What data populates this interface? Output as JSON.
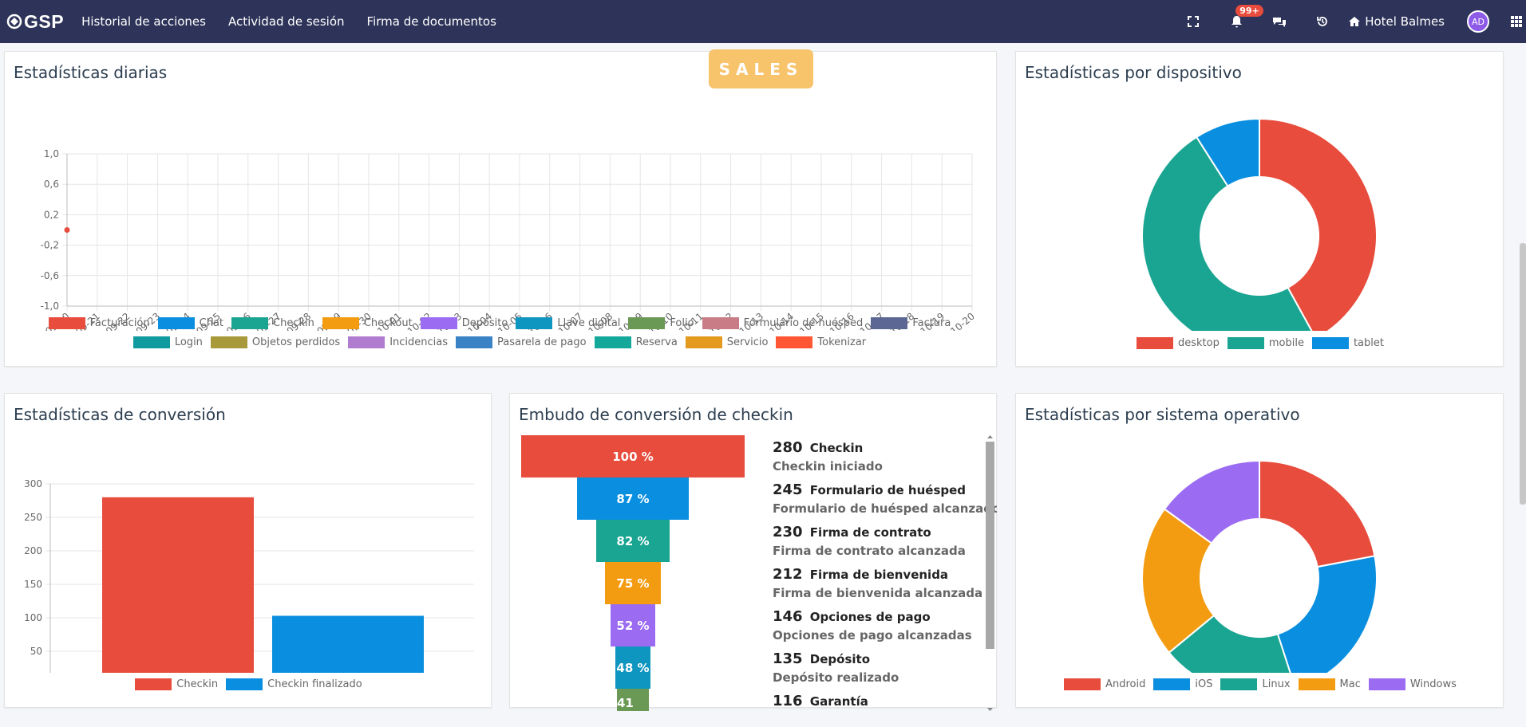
{
  "navbar": {
    "brand": "GSP",
    "links": [
      "Historial de acciones",
      "Actividad de sesión",
      "Firma de documentos"
    ],
    "notification_badge": "99+",
    "hotel": "Hotel Balmes",
    "avatar_initials": "AD"
  },
  "sales_button": "SALES",
  "daily": {
    "title": "Estadísticas diarias",
    "legend": [
      {
        "label": "Facturación",
        "color": "#e74c3c"
      },
      {
        "label": "Chat",
        "color": "#0a8fe0"
      },
      {
        "label": "Checkin",
        "color": "#1aa592"
      },
      {
        "label": "Checkout",
        "color": "#f39c12"
      },
      {
        "label": "Depósito",
        "color": "#9b6cf2"
      },
      {
        "label": "Llave digital",
        "color": "#0f96c0"
      },
      {
        "label": "Folio",
        "color": "#6a9955"
      },
      {
        "label": "Formulario de huésped",
        "color": "#c97c86"
      },
      {
        "label": "Factura",
        "color": "#5c6793"
      },
      {
        "label": "Login",
        "color": "#0f9aa0"
      },
      {
        "label": "Objetos perdidos",
        "color": "#a89a3a"
      },
      {
        "label": "Incidencias",
        "color": "#b07cd0"
      },
      {
        "label": "Pasarela de pago",
        "color": "#3a82c6"
      },
      {
        "label": "Reserva",
        "color": "#13a89a"
      },
      {
        "label": "Servicio",
        "color": "#e39a1e"
      },
      {
        "label": "Tokenizar",
        "color": "#ff5733"
      }
    ]
  },
  "device": {
    "title": "Estadísticas por dispositivo",
    "legend": [
      {
        "label": "desktop",
        "color": "#e74c3c"
      },
      {
        "label": "mobile",
        "color": "#1aa592"
      },
      {
        "label": "tablet",
        "color": "#0a8fe0"
      }
    ]
  },
  "conversion": {
    "title": "Estadísticas de conversión",
    "legend": [
      {
        "label": "Checkin",
        "color": "#e74c3c"
      },
      {
        "label": "Checkin finalizado",
        "color": "#0a8fe0"
      }
    ]
  },
  "funnel": {
    "title": "Embudo de conversión de checkin",
    "steps": [
      {
        "percent": "100 %",
        "count": "280",
        "name": "Checkin",
        "sub": "Checkin iniciado",
        "color": "#e74c3c",
        "fraction": 1.0
      },
      {
        "percent": "87 %",
        "count": "245",
        "name": "Formulario de huésped",
        "sub": "Formulario de huésped alcanzado",
        "color": "#0a8fe0",
        "fraction": 0.87
      },
      {
        "percent": "82 %",
        "count": "230",
        "name": "Firma de contrato",
        "sub": "Firma de contrato alcanzada",
        "color": "#1aa592",
        "fraction": 0.82
      },
      {
        "percent": "75 %",
        "count": "212",
        "name": "Firma de bienvenida",
        "sub": "Firma de bienvenida alcanzada",
        "color": "#f39c12",
        "fraction": 0.75
      },
      {
        "percent": "52 %",
        "count": "146",
        "name": "Opciones de pago",
        "sub": "Opciones de pago alcanzadas",
        "color": "#9b6cf2",
        "fraction": 0.52
      },
      {
        "percent": "48 %",
        "count": "135",
        "name": "Depósito",
        "sub": "Depósito realizado",
        "color": "#0f96c0",
        "fraction": 0.48
      },
      {
        "percent": "41 %",
        "count": "116",
        "name": "Garantía",
        "sub": "",
        "color": "#6a9955",
        "fraction": 0.41
      }
    ]
  },
  "os": {
    "title": "Estadísticas por sistema operativo",
    "legend": [
      {
        "label": "Android",
        "color": "#e74c3c"
      },
      {
        "label": "iOS",
        "color": "#0a8fe0"
      },
      {
        "label": "Linux",
        "color": "#1aa592"
      },
      {
        "label": "Mac",
        "color": "#f39c12"
      },
      {
        "label": "Windows",
        "color": "#9b6cf2"
      }
    ]
  },
  "chart_data": [
    {
      "type": "line",
      "title": "Estadísticas diarias",
      "x": [
        "2024-09-20",
        "2024-09-21",
        "2024-09-22",
        "2024-09-23",
        "2024-09-24",
        "2024-09-25",
        "2024-09-26",
        "2024-09-27",
        "2024-09-28",
        "2024-09-29",
        "2024-09-30",
        "2024-10-01",
        "2024-10-02",
        "2024-10-03",
        "2024-10-04",
        "2024-10-05",
        "2024-10-06",
        "2024-10-07",
        "2024-10-08",
        "2024-10-09",
        "2024-10-10",
        "2024-10-11",
        "2024-10-12",
        "2024-10-13",
        "2024-10-14",
        "2024-10-15",
        "2024-10-16",
        "2024-10-17",
        "2024-10-18",
        "2024-10-19",
        "2024-10-20"
      ],
      "yticks": [
        "1,0",
        "0,6",
        "0,2",
        "-0,2",
        "-0,6",
        "-1,0"
      ],
      "ylim": [
        -1.0,
        1.0
      ],
      "series": [
        {
          "name": "Facturación",
          "points": [
            {
              "x": "2024-09-20",
              "y": 0
            }
          ]
        }
      ]
    },
    {
      "type": "pie",
      "title": "Estadísticas por dispositivo",
      "labels": [
        "desktop",
        "mobile",
        "tablet"
      ],
      "values": [
        42,
        49,
        9
      ]
    },
    {
      "type": "bar",
      "title": "Estadísticas de conversión",
      "categories": [
        "Checkin",
        "Checkin finalizado"
      ],
      "values": [
        280,
        103
      ],
      "yticks": [
        0,
        50,
        100,
        150,
        200,
        250,
        300
      ],
      "ylim": [
        0,
        300
      ]
    },
    {
      "type": "pie",
      "title": "Estadísticas por sistema operativo",
      "labels": [
        "Android",
        "iOS",
        "Linux",
        "Mac",
        "Windows"
      ],
      "values": [
        22,
        23,
        19,
        21,
        15
      ]
    }
  ]
}
